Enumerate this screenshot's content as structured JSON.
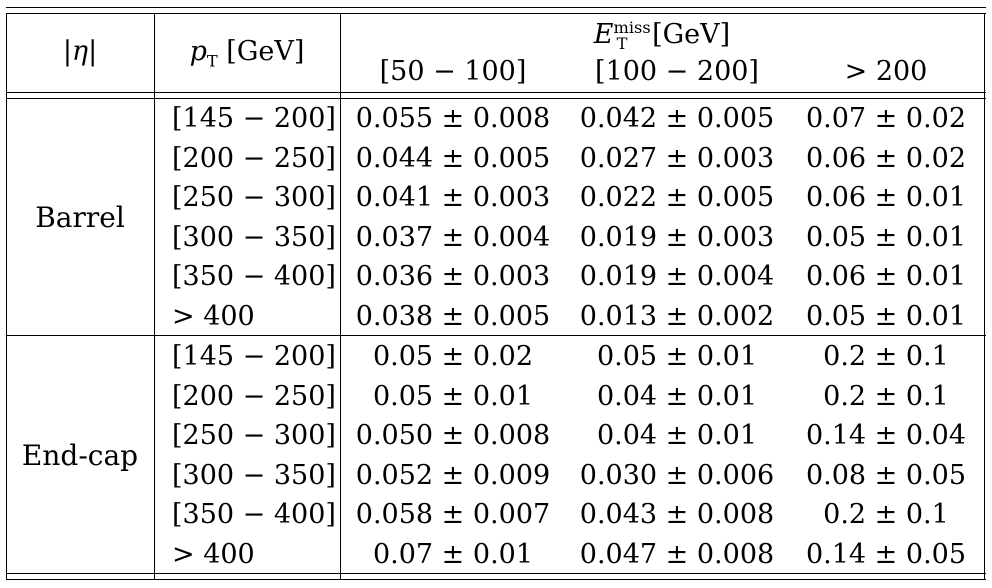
{
  "header": {
    "eta_label": "|η|",
    "pt_var": "p",
    "pt_sub": "T",
    "pt_unit": " [GeV]",
    "met_var": "E",
    "met_sub": "T",
    "met_sup": "miss",
    "met_unit": " [GeV]",
    "met_bins": [
      "[50 − 100]",
      "[100 − 200]",
      "> 200"
    ]
  },
  "groups": [
    {
      "label": "Barrel",
      "rows": [
        {
          "pt": "[145 − 200]",
          "v": [
            "0.055 ± 0.008",
            "0.042 ± 0.005",
            "0.07 ± 0.02"
          ]
        },
        {
          "pt": "[200 − 250]",
          "v": [
            "0.044 ± 0.005",
            "0.027 ± 0.003",
            "0.06 ± 0.02"
          ]
        },
        {
          "pt": "[250 − 300]",
          "v": [
            "0.041 ± 0.003",
            "0.022 ± 0.005",
            "0.06 ± 0.01"
          ]
        },
        {
          "pt": "[300 − 350]",
          "v": [
            "0.037 ± 0.004",
            "0.019 ± 0.003",
            "0.05 ± 0.01"
          ]
        },
        {
          "pt": "[350 − 400]",
          "v": [
            "0.036 ± 0.003",
            "0.019 ± 0.004",
            "0.06 ± 0.01"
          ]
        },
        {
          "pt": "> 400",
          "v": [
            "0.038 ± 0.005",
            "0.013 ± 0.002",
            "0.05 ± 0.01"
          ]
        }
      ]
    },
    {
      "label": "End-cap",
      "rows": [
        {
          "pt": "[145 − 200]",
          "v": [
            "0.05 ± 0.02",
            "0.05 ± 0.01",
            "0.2 ± 0.1"
          ]
        },
        {
          "pt": "[200 − 250]",
          "v": [
            "0.05 ± 0.01",
            "0.04 ± 0.01",
            "0.2 ± 0.1"
          ]
        },
        {
          "pt": "[250 − 300]",
          "v": [
            "0.050 ± 0.008",
            "0.04 ± 0.01",
            "0.14 ± 0.04"
          ]
        },
        {
          "pt": "[300 − 350]",
          "v": [
            "0.052 ± 0.009",
            "0.030 ± 0.006",
            "0.08 ± 0.05"
          ]
        },
        {
          "pt": "[350 − 400]",
          "v": [
            "0.058 ± 0.007",
            "0.043 ± 0.008",
            "0.2 ± 0.1"
          ]
        },
        {
          "pt": "> 400",
          "v": [
            "0.07 ± 0.01",
            "0.047 ± 0.008",
            "0.14 ± 0.05"
          ]
        }
      ]
    }
  ]
}
